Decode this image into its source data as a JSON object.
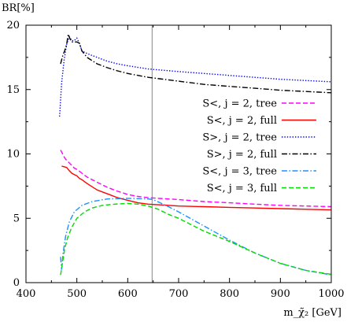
{
  "chart_data": {
    "type": "line",
    "title": "",
    "ylabel": "BR[%]",
    "xlabel": "m_χ̃₂ [GeV]",
    "xlim": [
      400,
      1000
    ],
    "ylim": [
      0,
      20
    ],
    "xticks": [
      "400",
      "500",
      "600",
      "700",
      "800",
      "900",
      "1000"
    ],
    "yticks": [
      "0",
      "5",
      "10",
      "15",
      "20"
    ],
    "grid": false,
    "legend_position": "top-right",
    "vertical_marker_x": 648,
    "series": [
      {
        "name": "S<, j = 2, tree",
        "color": "#ff00ff",
        "dash": "dashed",
        "points": [
          [
            468,
            10.3
          ],
          [
            472,
            10.0
          ],
          [
            476,
            9.7
          ],
          [
            480,
            9.5
          ],
          [
            485,
            9.3
          ],
          [
            490,
            9.1
          ],
          [
            495,
            8.9
          ],
          [
            500,
            8.8
          ],
          [
            510,
            8.5
          ],
          [
            520,
            8.2
          ],
          [
            540,
            7.8
          ],
          [
            560,
            7.4
          ],
          [
            580,
            7.1
          ],
          [
            600,
            6.85
          ],
          [
            620,
            6.7
          ],
          [
            640,
            6.6
          ],
          [
            660,
            6.55
          ],
          [
            700,
            6.45
          ],
          [
            750,
            6.3
          ],
          [
            800,
            6.2
          ],
          [
            850,
            6.1
          ],
          [
            900,
            6.0
          ],
          [
            950,
            5.95
          ],
          [
            1000,
            5.9
          ]
        ]
      },
      {
        "name": "S<, j = 2, full",
        "color": "#ff0000",
        "dash": "solid",
        "points": [
          [
            470,
            9.05
          ],
          [
            475,
            9.0
          ],
          [
            480,
            8.95
          ],
          [
            485,
            8.7
          ],
          [
            490,
            8.5
          ],
          [
            495,
            8.4
          ],
          [
            500,
            8.3
          ],
          [
            505,
            8.1
          ],
          [
            510,
            8.0
          ],
          [
            520,
            7.7
          ],
          [
            540,
            7.2
          ],
          [
            560,
            6.9
          ],
          [
            580,
            6.6
          ],
          [
            600,
            6.4
          ],
          [
            620,
            6.2
          ],
          [
            640,
            6.1
          ],
          [
            660,
            6.05
          ],
          [
            700,
            5.95
          ],
          [
            750,
            5.9
          ],
          [
            800,
            5.85
          ],
          [
            850,
            5.8
          ],
          [
            900,
            5.75
          ],
          [
            950,
            5.7
          ],
          [
            1000,
            5.65
          ]
        ]
      },
      {
        "name": "S>, j = 2, tree",
        "color": "#0000ff",
        "dash": "dotted",
        "points": [
          [
            466,
            12.9
          ],
          [
            470,
            15.5
          ],
          [
            475,
            17.3
          ],
          [
            480,
            18.5
          ],
          [
            485,
            19.1
          ],
          [
            490,
            18.8
          ],
          [
            495,
            18.8
          ],
          [
            500,
            19.0
          ],
          [
            505,
            18.6
          ],
          [
            510,
            18.0
          ],
          [
            520,
            17.8
          ],
          [
            540,
            17.5
          ],
          [
            560,
            17.2
          ],
          [
            580,
            17.0
          ],
          [
            600,
            16.85
          ],
          [
            640,
            16.6
          ],
          [
            700,
            16.4
          ],
          [
            750,
            16.25
          ],
          [
            800,
            16.1
          ],
          [
            850,
            15.95
          ],
          [
            900,
            15.8
          ],
          [
            950,
            15.7
          ],
          [
            1000,
            15.6
          ]
        ]
      },
      {
        "name": "S>, j = 2, full",
        "color": "#000000",
        "dash": "dashdot",
        "points": [
          [
            468,
            17.0
          ],
          [
            472,
            17.6
          ],
          [
            476,
            18.0
          ],
          [
            480,
            18.5
          ],
          [
            483,
            19.3
          ],
          [
            486,
            19.0
          ],
          [
            490,
            18.7
          ],
          [
            495,
            18.7
          ],
          [
            500,
            18.7
          ],
          [
            505,
            18.6
          ],
          [
            510,
            18.0
          ],
          [
            520,
            17.5
          ],
          [
            540,
            17.0
          ],
          [
            560,
            16.7
          ],
          [
            580,
            16.45
          ],
          [
            600,
            16.25
          ],
          [
            640,
            15.95
          ],
          [
            700,
            15.65
          ],
          [
            750,
            15.4
          ],
          [
            800,
            15.25
          ],
          [
            850,
            15.1
          ],
          [
            900,
            14.95
          ],
          [
            950,
            14.85
          ],
          [
            1000,
            14.75
          ]
        ]
      },
      {
        "name": "S<, j = 3, tree",
        "color": "#1e90ff",
        "dash": "dashdot",
        "points": [
          [
            468,
            2.0
          ],
          [
            470,
            1.0
          ],
          [
            473,
            2.3
          ],
          [
            478,
            3.6
          ],
          [
            485,
            4.7
          ],
          [
            495,
            5.5
          ],
          [
            510,
            6.0
          ],
          [
            530,
            6.3
          ],
          [
            560,
            6.5
          ],
          [
            600,
            6.55
          ],
          [
            640,
            6.5
          ],
          [
            650,
            6.45
          ],
          [
            680,
            5.9
          ],
          [
            700,
            5.5
          ],
          [
            750,
            4.4
          ],
          [
            800,
            3.3
          ],
          [
            850,
            2.3
          ],
          [
            900,
            1.5
          ],
          [
            950,
            0.95
          ],
          [
            1000,
            0.6
          ]
        ]
      },
      {
        "name": "S<, j = 3, full",
        "color": "#00dd00",
        "dash": "dashed",
        "points": [
          [
            468,
            0.6
          ],
          [
            472,
            1.6
          ],
          [
            476,
            2.6
          ],
          [
            482,
            3.5
          ],
          [
            490,
            4.3
          ],
          [
            500,
            5.0
          ],
          [
            515,
            5.5
          ],
          [
            530,
            5.8
          ],
          [
            550,
            6.0
          ],
          [
            575,
            6.1
          ],
          [
            600,
            6.15
          ],
          [
            620,
            6.1
          ],
          [
            640,
            5.95
          ],
          [
            660,
            5.7
          ],
          [
            680,
            5.3
          ],
          [
            700,
            5.0
          ],
          [
            750,
            4.0
          ],
          [
            800,
            3.2
          ],
          [
            850,
            2.3
          ],
          [
            900,
            1.5
          ],
          [
            950,
            0.95
          ],
          [
            1000,
            0.65
          ]
        ]
      }
    ]
  }
}
